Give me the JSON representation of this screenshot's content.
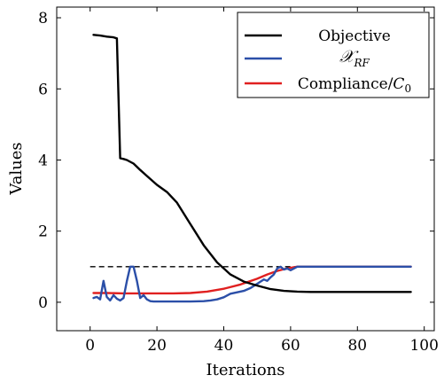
{
  "chart_data": {
    "type": "line",
    "xlabel": "Iterations",
    "ylabel": "Values",
    "xlim": [
      -10,
      103
    ],
    "ylim": [
      -0.8,
      8.3
    ],
    "xticks": [
      0,
      20,
      40,
      60,
      80,
      100
    ],
    "yticks": [
      0,
      2,
      4,
      6,
      8
    ],
    "grid": false,
    "legend_position": "top-right",
    "reference_line": {
      "y": 1,
      "style": "dashed",
      "color": "#000000",
      "x_start": 0,
      "x_end": 96
    },
    "series": [
      {
        "name": "Objective",
        "color": "#000000",
        "x": [
          1,
          3,
          5,
          7,
          8,
          9,
          10,
          11,
          12,
          13,
          15,
          17,
          20,
          23,
          26,
          30,
          34,
          38,
          42,
          46,
          50,
          54,
          58,
          62,
          66,
          70,
          75,
          80,
          85,
          90,
          96
        ],
        "y": [
          7.52,
          7.5,
          7.47,
          7.45,
          7.42,
          4.05,
          4.03,
          4.0,
          3.95,
          3.9,
          3.72,
          3.55,
          3.3,
          3.1,
          2.8,
          2.2,
          1.6,
          1.12,
          0.78,
          0.58,
          0.47,
          0.37,
          0.32,
          0.3,
          0.29,
          0.29,
          0.29,
          0.29,
          0.29,
          0.29,
          0.29
        ]
      },
      {
        "name": "𝒳_RF",
        "color": "#2b4fa8",
        "x": [
          1,
          2,
          3,
          4,
          5,
          6,
          7,
          8,
          9,
          10,
          11,
          12,
          13,
          14,
          15,
          16,
          17,
          18,
          19,
          20,
          25,
          30,
          34,
          36,
          38,
          40,
          42,
          44,
          46,
          48,
          50,
          51,
          52,
          53,
          54,
          55,
          56,
          57,
          58,
          59,
          60,
          61,
          62,
          64,
          66,
          70,
          75,
          80,
          85,
          90,
          96
        ],
        "y": [
          0.12,
          0.15,
          0.08,
          0.6,
          0.15,
          0.05,
          0.2,
          0.1,
          0.05,
          0.12,
          0.6,
          1.0,
          1.0,
          0.6,
          0.12,
          0.2,
          0.08,
          0.03,
          0.02,
          0.02,
          0.02,
          0.02,
          0.03,
          0.05,
          0.08,
          0.14,
          0.24,
          0.28,
          0.32,
          0.4,
          0.52,
          0.58,
          0.64,
          0.6,
          0.7,
          0.78,
          0.95,
          1.0,
          0.92,
          0.95,
          0.9,
          0.95,
          1.0,
          1.0,
          1.0,
          1.0,
          1.0,
          1.0,
          1.0,
          1.0,
          1.0
        ]
      },
      {
        "name": "Compliance/C0",
        "color": "#e02020",
        "x": [
          1,
          5,
          10,
          15,
          20,
          25,
          30,
          35,
          40,
          45,
          50,
          53,
          56,
          58,
          60,
          62,
          65,
          70,
          80,
          90,
          96
        ],
        "y": [
          0.26,
          0.26,
          0.25,
          0.25,
          0.25,
          0.25,
          0.26,
          0.3,
          0.38,
          0.5,
          0.66,
          0.78,
          0.88,
          0.93,
          0.97,
          1.0,
          1.0,
          1.0,
          1.0,
          1.0,
          1.0
        ]
      }
    ]
  },
  "legend": {
    "objective_label": "Objective",
    "xrf_main": "𝒳",
    "xrf_sub": "RF",
    "compliance_prefix": "Compliance/",
    "compliance_C": "C",
    "compliance_sub": "0"
  }
}
